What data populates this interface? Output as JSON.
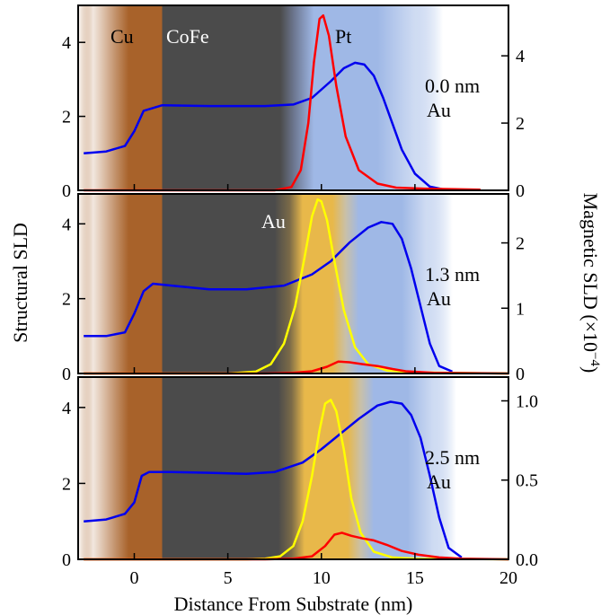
{
  "colors": {
    "cu": "#a8622a",
    "cofe": "#4b4b4b",
    "pt": "#9fb8e6",
    "au": "#e8b84a",
    "structural": "#0000ee",
    "magnetic_pt": "#ff0000",
    "magnetic_au": "#ffff00"
  },
  "chart_data": [
    {
      "type": "line",
      "panel": "top",
      "annotations": [
        "Cu",
        "CoFe",
        "Pt"
      ],
      "label_line1": "0.0 nm",
      "label_line2": "Au",
      "xlim": [
        -3,
        20
      ],
      "ylim_left": [
        0,
        5
      ],
      "ylim_right": [
        0,
        5.5
      ],
      "yticks_left": [
        "0",
        "2",
        "4"
      ],
      "yticks_right": [
        "0",
        "2",
        "4"
      ],
      "yticks_right_values": [
        0,
        2,
        4
      ],
      "series": [
        {
          "axis": "left",
          "color": "blue",
          "x": [
            -2.7,
            -1.5,
            -0.5,
            0,
            0.5,
            1.5,
            4,
            7,
            8.5,
            9.5,
            10.5,
            11.2,
            11.8,
            12.3,
            12.8,
            13.3,
            13.8,
            14.3,
            15,
            15.8,
            16.5
          ],
          "y": [
            1.0,
            1.05,
            1.2,
            1.6,
            2.15,
            2.3,
            2.28,
            2.28,
            2.32,
            2.5,
            2.95,
            3.3,
            3.45,
            3.4,
            3.1,
            2.5,
            1.8,
            1.1,
            0.45,
            0.1,
            0.03
          ]
        },
        {
          "axis": "right",
          "color": "red",
          "x": [
            -2.7,
            6,
            7.5,
            8.4,
            8.9,
            9.3,
            9.6,
            9.9,
            10.1,
            10.4,
            10.8,
            11.3,
            12,
            13,
            14,
            15.5,
            18.5
          ],
          "y": [
            0,
            0,
            0,
            0.1,
            0.6,
            2.0,
            3.8,
            5.1,
            5.2,
            4.6,
            3.1,
            1.6,
            0.6,
            0.2,
            0.08,
            0.05,
            0.02
          ]
        }
      ]
    },
    {
      "type": "line",
      "panel": "middle",
      "annotations": [
        "Au"
      ],
      "label_line1": "1.3 nm",
      "label_line2": "Au",
      "xlim": [
        -3,
        20
      ],
      "ylim_left": [
        0,
        4.8
      ],
      "ylim_right": [
        0,
        2.75
      ],
      "yticks_left": [
        "0",
        "2",
        "4"
      ],
      "yticks_right": [
        "0",
        "1",
        "2"
      ],
      "yticks_right_values": [
        0,
        1,
        2
      ],
      "series": [
        {
          "axis": "left",
          "color": "blue",
          "x": [
            -2.7,
            -1.5,
            -0.5,
            0,
            0.5,
            1,
            2,
            4,
            6,
            8,
            9.5,
            10.5,
            11.5,
            12.5,
            13.2,
            13.8,
            14.3,
            14.8,
            15.3,
            15.8,
            16.3,
            17
          ],
          "y": [
            1.0,
            1.0,
            1.1,
            1.6,
            2.2,
            2.4,
            2.35,
            2.25,
            2.25,
            2.35,
            2.65,
            3.0,
            3.5,
            3.9,
            4.05,
            4.0,
            3.6,
            2.8,
            1.8,
            0.8,
            0.2,
            0.05
          ]
        },
        {
          "axis": "left",
          "color": "yellow",
          "x": [
            -2.7,
            5,
            6.5,
            7.3,
            8,
            8.6,
            9.1,
            9.5,
            9.8,
            10,
            10.3,
            10.7,
            11.2,
            11.8,
            12.5,
            13.5,
            15,
            20
          ],
          "y": [
            0,
            0,
            0.05,
            0.25,
            0.8,
            1.8,
            3.1,
            4.2,
            4.65,
            4.6,
            4.1,
            3.0,
            1.7,
            0.7,
            0.25,
            0.08,
            0.03,
            0
          ]
        },
        {
          "axis": "left",
          "color": "red",
          "x": [
            -2.7,
            7,
            8.5,
            9.5,
            10.3,
            10.9,
            11.5,
            12.2,
            13,
            13.8,
            14.5,
            16,
            20
          ],
          "y": [
            0,
            0,
            0.02,
            0.06,
            0.18,
            0.32,
            0.3,
            0.25,
            0.2,
            0.12,
            0.06,
            0.02,
            0
          ]
        }
      ]
    },
    {
      "type": "line",
      "panel": "bottom",
      "annotations": [],
      "label_line1": "2.5 nm",
      "label_line2": "Au",
      "xlim": [
        -3,
        20
      ],
      "ylim_left": [
        0,
        4.8
      ],
      "ylim_right": [
        0,
        1.15
      ],
      "yticks_left": [
        "0",
        "2",
        "4"
      ],
      "yticks_right": [
        "0.0",
        "0.5",
        "1.0"
      ],
      "yticks_right_values": [
        0,
        0.5,
        1.0
      ],
      "series": [
        {
          "axis": "left",
          "color": "blue",
          "x": [
            -2.7,
            -1.5,
            -0.5,
            0,
            0.4,
            0.8,
            2,
            4,
            6,
            7.5,
            9,
            10,
            11,
            12,
            13,
            13.7,
            14.3,
            14.8,
            15.3,
            15.8,
            16.3,
            16.8,
            17.5
          ],
          "y": [
            1.0,
            1.05,
            1.2,
            1.5,
            2.2,
            2.3,
            2.3,
            2.28,
            2.25,
            2.3,
            2.55,
            2.9,
            3.3,
            3.7,
            4.05,
            4.15,
            4.1,
            3.8,
            3.2,
            2.2,
            1.1,
            0.3,
            0.05
          ]
        },
        {
          "axis": "left",
          "color": "yellow",
          "x": [
            -2.7,
            6,
            7,
            7.8,
            8.5,
            9,
            9.5,
            9.9,
            10.2,
            10.5,
            10.8,
            11.2,
            11.6,
            12.1,
            12.8,
            13.8,
            15,
            20
          ],
          "y": [
            0,
            0,
            0.02,
            0.08,
            0.35,
            1.0,
            2.2,
            3.4,
            4.1,
            4.2,
            3.9,
            2.9,
            1.6,
            0.7,
            0.2,
            0.05,
            0.02,
            0
          ]
        },
        {
          "axis": "left",
          "color": "red",
          "x": [
            -2.7,
            7,
            8.5,
            9.5,
            10.2,
            10.7,
            11.1,
            11.6,
            12.2,
            12.8,
            13.5,
            14.3,
            15.2,
            16.3,
            17.5,
            20
          ],
          "y": [
            0,
            0,
            0.02,
            0.08,
            0.35,
            0.65,
            0.7,
            0.62,
            0.55,
            0.5,
            0.38,
            0.22,
            0.12,
            0.05,
            0.02,
            0
          ]
        }
      ]
    }
  ],
  "x_axis": {
    "label": "Distance From Substrate (nm)",
    "ticks": [
      "0",
      "5",
      "10",
      "15",
      "20"
    ],
    "tick_values": [
      0,
      5,
      10,
      15,
      20
    ]
  },
  "y_axis_left_label": "Structural SLD",
  "y_axis_right_label_prefix": "Magnetic SLD (×10",
  "y_axis_right_label_exp": "−4",
  "y_axis_right_label_suffix": ")"
}
